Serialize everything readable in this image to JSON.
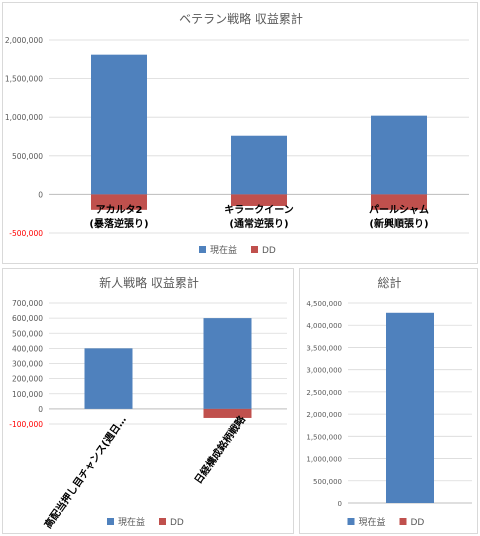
{
  "colors": {
    "profit": "#4F81BD",
    "dd": "#C0504D",
    "grid": "#D9D9D9",
    "axis": "#BFBFBF",
    "text": "#595959",
    "negative_tick": "#FF0000"
  },
  "chart_data": [
    {
      "type": "bar",
      "title": "ベテラン戦略 収益累計",
      "categories": [
        "アカルタ2",
        "キラークイーン",
        "パールシャム"
      ],
      "category_sublabels": [
        "(暴落逆張り)",
        "(通常逆張り)",
        "(新興順張り)"
      ],
      "series": [
        {
          "name": "現在益",
          "values": [
            1810000,
            760000,
            1020000
          ]
        },
        {
          "name": "DD",
          "values": [
            -200000,
            -150000,
            -200000
          ]
        }
      ],
      "ylim": [
        -500000,
        2000000
      ],
      "yticks": [
        "2,000,000",
        "1,500,000",
        "1,000,000",
        "500,000",
        "0",
        "-500,000"
      ],
      "legend": "bottom",
      "grid": true
    },
    {
      "type": "bar",
      "title": "新人戦略 収益累計",
      "categories": [
        "高配当押し目チャンス(週日…",
        "日経構成銘柄戦略"
      ],
      "series": [
        {
          "name": "現在益",
          "values": [
            400000,
            600000
          ]
        },
        {
          "name": "DD",
          "values": [
            0,
            -60000
          ]
        }
      ],
      "ylim": [
        -100000,
        700000
      ],
      "yticks": [
        "700,000",
        "600,000",
        "500,000",
        "400,000",
        "300,000",
        "200,000",
        "100,000",
        "0",
        "-100,000"
      ],
      "legend": "bottom",
      "grid": true
    },
    {
      "type": "bar",
      "title": "総計",
      "categories": [
        ""
      ],
      "series": [
        {
          "name": "現在益",
          "values": [
            4280000
          ]
        },
        {
          "name": "DD",
          "values": [
            0
          ]
        }
      ],
      "ylim": [
        0,
        4500000
      ],
      "yticks": [
        "4,500,000",
        "4,000,000",
        "3,500,000",
        "3,000,000",
        "2,500,000",
        "2,000,000",
        "1,500,000",
        "1,000,000",
        "500,000",
        "0"
      ],
      "legend": "bottom",
      "grid": true
    }
  ]
}
